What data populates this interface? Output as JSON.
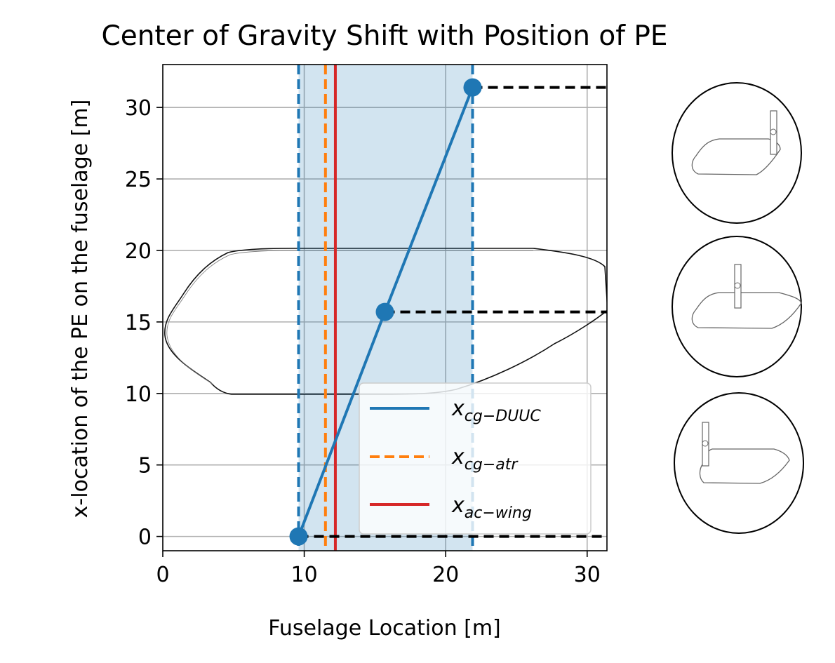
{
  "chart_data": {
    "type": "line",
    "title": "Center of Gravity Shift with Position of PE",
    "xlabel": "Fuselage Location [m]",
    "ylabel": "x-location of the PE on the fuselage [m]",
    "xlim": [
      0,
      31.4
    ],
    "ylim": [
      -1,
      33
    ],
    "xticks": [
      0,
      10,
      20,
      30
    ],
    "yticks": [
      0,
      5,
      10,
      15,
      20,
      25,
      30
    ],
    "grid": true,
    "legend_position": "lower-right",
    "series": [
      {
        "name": "x_cg-DUUC",
        "label_main": "x",
        "label_sub": "cg−DUUC",
        "kind": "line-markers",
        "color": "#1f77b4",
        "x": [
          9.6,
          15.7,
          21.9
        ],
        "y": [
          0,
          15.7,
          31.4
        ]
      },
      {
        "name": "x_cg-atr",
        "label_main": "x",
        "label_sub": "cg−atr",
        "kind": "vertical-dashed",
        "color": "#ff7f0e",
        "x": 11.5
      },
      {
        "name": "x_ac-wing",
        "label_main": "x",
        "label_sub": "ac−wing",
        "kind": "vertical-solid",
        "color": "#d62728",
        "x": 12.2
      }
    ],
    "cg_range": {
      "xmin": 9.6,
      "xmax": 21.9,
      "fill_color": "#1f77b4",
      "fill_opacity": 0.2,
      "edge_style": "dashed"
    },
    "pe_position_lines": {
      "color": "#000000",
      "style": "dashed",
      "points": [
        {
          "x": 9.6,
          "y": 0
        },
        {
          "x": 15.7,
          "y": 15.7
        },
        {
          "x": 21.9,
          "y": 31.4
        }
      ]
    },
    "fuselage_outline": "background silhouette of the fuselage spanning y = 10 to 20",
    "side_thumbnails": [
      {
        "name": "pe-aft-thumbnail",
        "pe_position": "aft"
      },
      {
        "name": "pe-mid-thumbnail",
        "pe_position": "middle"
      },
      {
        "name": "pe-front-thumbnail",
        "pe_position": "front"
      }
    ]
  }
}
